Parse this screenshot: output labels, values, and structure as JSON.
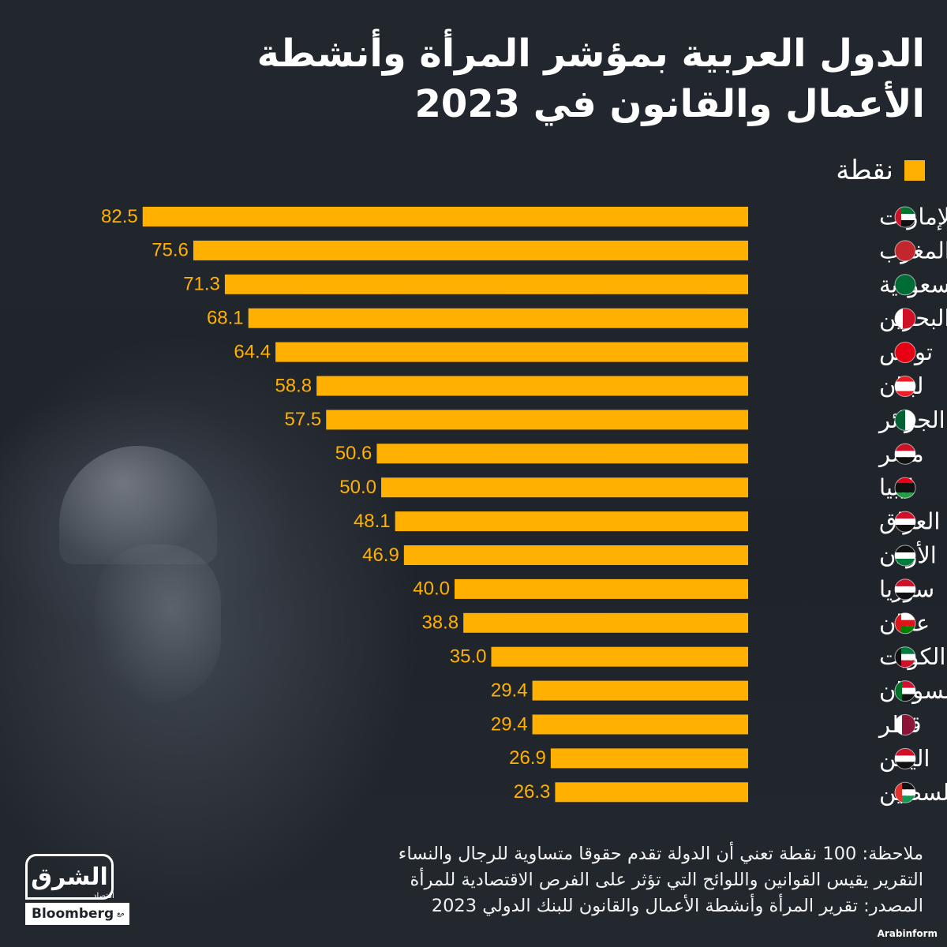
{
  "title": {
    "line1": "الدول العربية بمؤشر المرأة وأنشطة",
    "line2": "الأعمال والقانون في 2023"
  },
  "legend": {
    "label": "نقطة",
    "color": "#ffb000"
  },
  "chart_data": {
    "type": "bar",
    "orientation": "horizontal",
    "title": "الدول العربية بمؤشر المرأة وأنشطة الأعمال والقانون في 2023",
    "series_name": "نقطة",
    "xlim": [
      0,
      100
    ],
    "categories": [
      "الإمارات",
      "المغرب",
      "السعودية",
      "البحرين",
      "تونس",
      "لبنان",
      "الجزائر",
      "مصر",
      "ليبيا",
      "العراق",
      "الأردن",
      "سوريا",
      "عمان",
      "الكويت",
      "السودان",
      "قطر",
      "اليمن",
      "فلسطين"
    ],
    "value_labels": [
      "82.5",
      "75.6",
      "71.3",
      "68.1",
      "64.4",
      "58.8",
      "57.5",
      "50.6",
      "50.0",
      "48.1",
      "46.9",
      "40.0",
      "38.8",
      "35.0",
      "29.4",
      "29.4",
      "26.9",
      "26.3"
    ],
    "values": [
      82.5,
      75.6,
      71.3,
      68.1,
      64.4,
      58.8,
      57.5,
      50.6,
      50.0,
      48.1,
      46.9,
      40.0,
      38.8,
      35.0,
      29.4,
      29.4,
      26.9,
      26.3
    ],
    "flag_icons": [
      "uae-flag-icon",
      "morocco-flag-icon",
      "saudi-flag-icon",
      "bahrain-flag-icon",
      "tunisia-flag-icon",
      "lebanon-flag-icon",
      "algeria-flag-icon",
      "egypt-flag-icon",
      "libya-flag-icon",
      "iraq-flag-icon",
      "jordan-flag-icon",
      "syria-flag-icon",
      "oman-flag-icon",
      "kuwait-flag-icon",
      "sudan-flag-icon",
      "qatar-flag-icon",
      "yemen-flag-icon",
      "palestine-flag-icon"
    ],
    "bar_color": "#ffb000",
    "label_color": "#ffb000"
  },
  "notes": {
    "line1": "ملاحظة: 100 نقطة تعني أن الدولة تقدم حقوقا متساوية للرجال والنساء",
    "line2": "التقرير يقيس القوانين واللوائح التي تؤثر على الفرص الاقتصادية للمرأة",
    "line3": "المصدر: تقرير المرأة وأنشطة الأعمال والقانون للبنك الدولي 2023"
  },
  "logo": {
    "arabic": "الشرق",
    "sub": "اقتصاد",
    "with": "مع",
    "bloomberg": "Bloomberg"
  },
  "credit": "Arabinform"
}
